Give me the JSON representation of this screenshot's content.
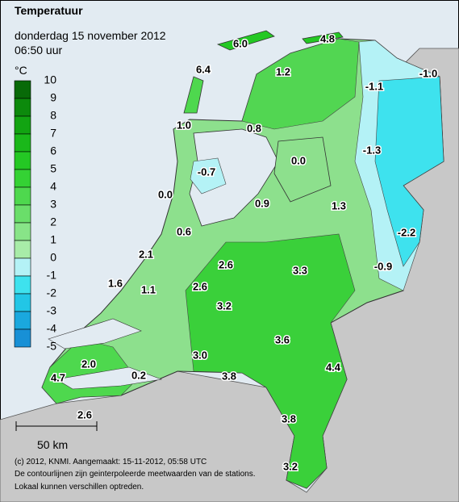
{
  "header": {
    "title": "Temperatuur",
    "date": "donderdag 15 november 2012",
    "time": "06:50 uur"
  },
  "legend": {
    "unit": "°C",
    "labels": [
      "10",
      "9",
      "8",
      "7",
      "6",
      "5",
      "4",
      "3",
      "2",
      "1",
      "0",
      "-1",
      "-2",
      "-3",
      "-4",
      "-5"
    ],
    "colors": [
      "#086a08",
      "#0c8a0c",
      "#12a412",
      "#1ab81a",
      "#24c824",
      "#34d234",
      "#4ed84e",
      "#6ade6a",
      "#88e488",
      "#a8eca8",
      "#b4f2f6",
      "#3ee2ee",
      "#22c6e6",
      "#1aa8de",
      "#1890d6"
    ]
  },
  "stations": [
    "6.0",
    "4.8",
    "6.4",
    "1.2",
    "-1.1",
    "-1.0",
    "1.0",
    "0.8",
    "-1.3",
    "0.0",
    "-0.7",
    "0.0",
    "0.9",
    "1.3",
    "-2.2",
    "0.6",
    "2.1",
    "2.6",
    "3.3",
    "-0.9",
    "1.6",
    "1.1",
    "2.6",
    "3.2",
    "3.6",
    "2.0",
    "3.0",
    "4.4",
    "0.2",
    "3.8",
    "4.7",
    "3.8",
    "2.6",
    "3.2"
  ],
  "scale_bar": "50 km",
  "footer": [
    "(c) 2012, KNMI. Aangemaakt: 15-11-2012, 05:58 UTC",
    "De contourlijnen zijn geinterpoleerde meetwaarden van de stations.",
    "Lokaal kunnen verschillen optreden."
  ]
}
